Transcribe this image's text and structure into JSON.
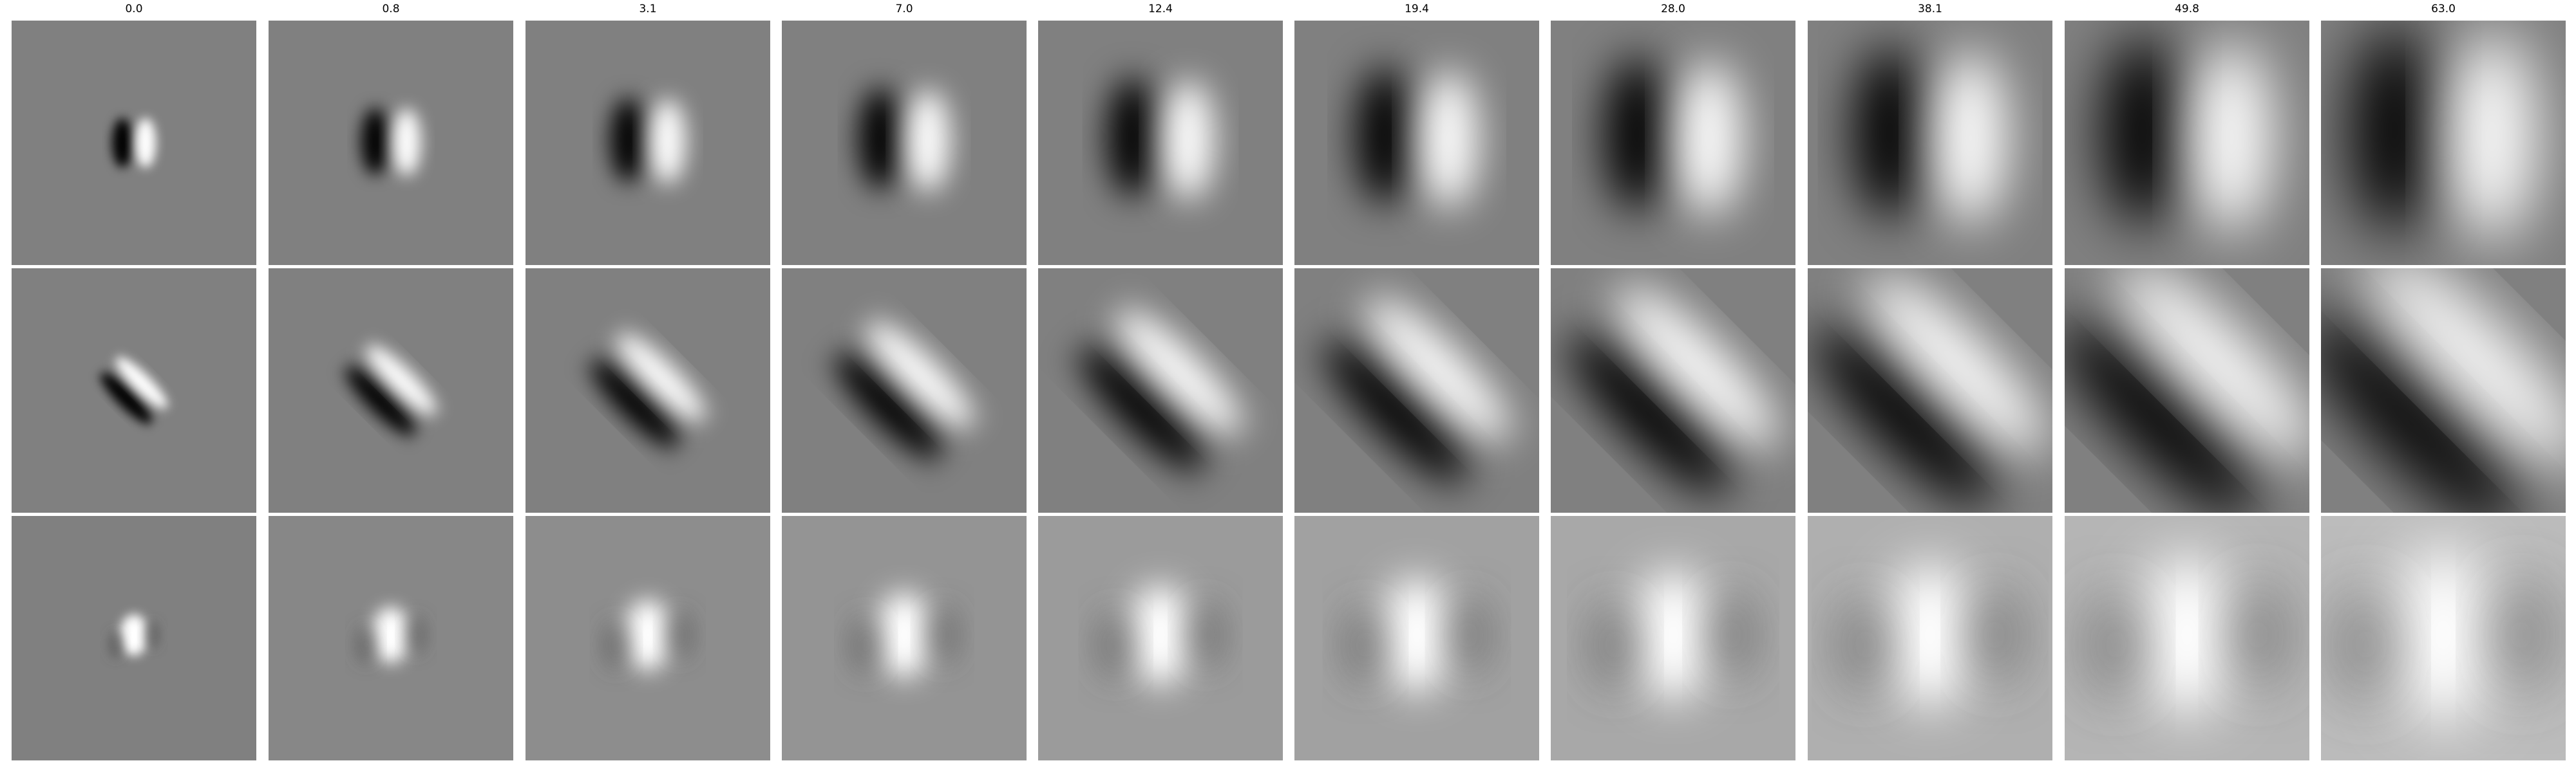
{
  "figure": {
    "columns": [
      "0.0",
      "0.8",
      "3.1",
      "7.0",
      "12.4",
      "19.4",
      "28.0",
      "38.1",
      "49.8",
      "63.0"
    ],
    "rows": [
      {
        "pattern": "vertical-edge-dark-left"
      },
      {
        "pattern": "diagonal-edge-dark-lower-left"
      },
      {
        "pattern": "bright-center-blob"
      }
    ],
    "colormap": "gray",
    "background_gray": "#808080"
  }
}
